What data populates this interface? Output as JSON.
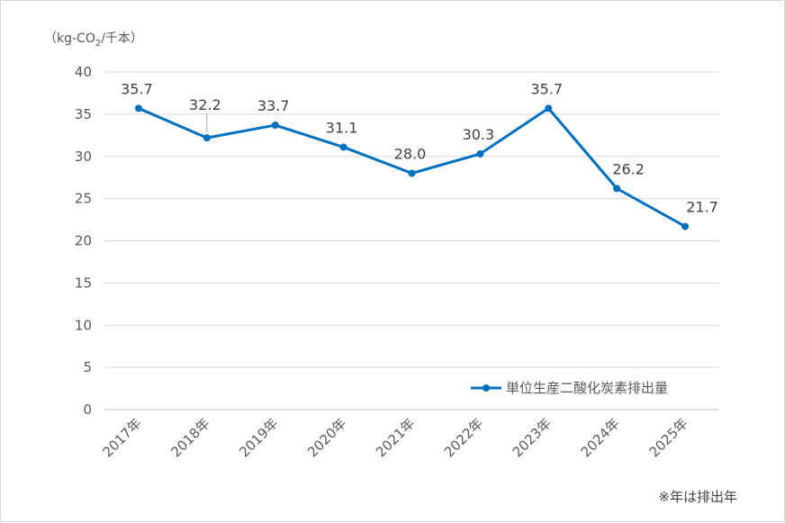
{
  "chart_data": {
    "type": "line",
    "categories": [
      "2017年",
      "2018年",
      "2019年",
      "2020年",
      "2021年",
      "2022年",
      "2023年",
      "2024年",
      "2025年"
    ],
    "series": [
      {
        "name": "単位生産二酸化炭素排出量",
        "values": [
          35.7,
          32.2,
          33.7,
          31.1,
          28.0,
          30.3,
          35.7,
          26.2,
          21.7
        ]
      }
    ],
    "data_labels": [
      "35.7",
      "32.2",
      "33.7",
      "31.1",
      "28.0",
      "30.3",
      "35.7",
      "26.2",
      "21.7"
    ],
    "y_ticks": [
      "0",
      "5",
      "10",
      "15",
      "20",
      "25",
      "30",
      "35",
      "40"
    ],
    "ylim": [
      0,
      40
    ],
    "grid": true,
    "legend_position": "bottom-right",
    "color": "#0070c0",
    "unit_label": {
      "prefix": "（kg-CO",
      "subscript": "2",
      "suffix": "/千本）"
    },
    "note": "※年は排出年"
  }
}
